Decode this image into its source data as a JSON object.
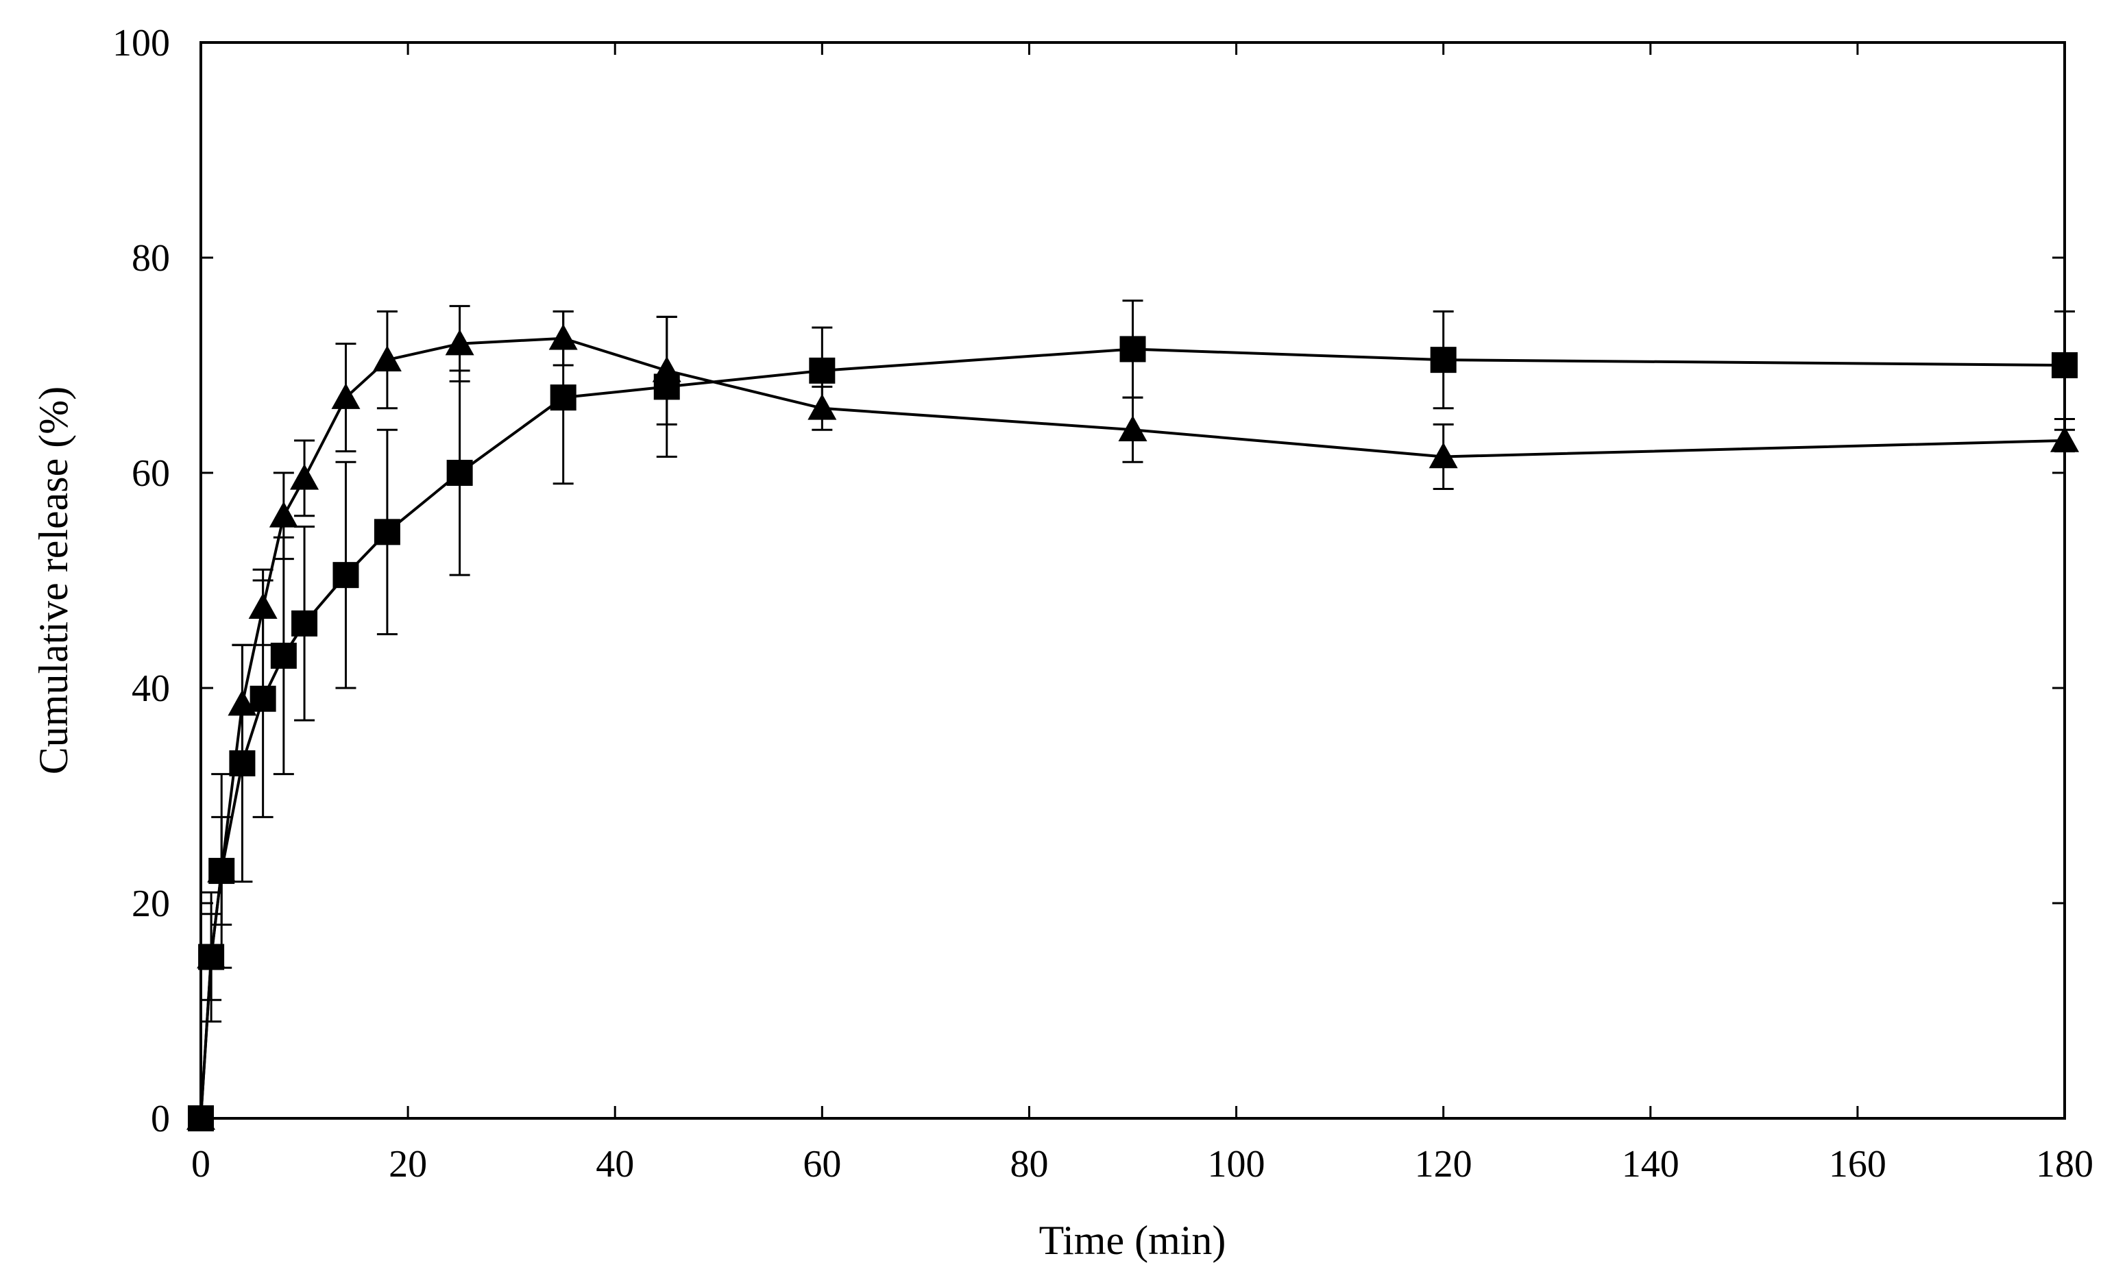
{
  "chart_data": {
    "type": "line",
    "title": "",
    "xlabel": "Time (min)",
    "ylabel": "Cumulative release (%)",
    "xlim": [
      0,
      180
    ],
    "ylim": [
      0,
      100
    ],
    "xticks": [
      0,
      20,
      40,
      60,
      80,
      100,
      120,
      140,
      160,
      180
    ],
    "yticks": [
      0,
      20,
      40,
      60,
      80,
      100
    ],
    "grid": false,
    "series": [
      {
        "name": "square",
        "marker": "square",
        "color": "#000000",
        "x": [
          0,
          1,
          2,
          4,
          6,
          8,
          10,
          14,
          18,
          25,
          35,
          45,
          60,
          90,
          120,
          180
        ],
        "y": [
          0,
          15,
          23,
          33,
          39,
          43,
          46,
          50.5,
          54.5,
          60,
          67,
          68,
          69.5,
          71.5,
          70.5,
          70
        ],
        "err": [
          0,
          6,
          9,
          11,
          11,
          11,
          9,
          10.5,
          9.5,
          9.5,
          8,
          6.5,
          4,
          4.5,
          4.5,
          5
        ]
      },
      {
        "name": "triangle",
        "marker": "triangle",
        "color": "#000000",
        "x": [
          0,
          1,
          2,
          4,
          6,
          8,
          10,
          14,
          18,
          25,
          35,
          45,
          60,
          90,
          120,
          180
        ],
        "y": [
          0,
          15,
          23,
          38.5,
          47.5,
          56,
          59.5,
          67,
          70.5,
          72,
          72.5,
          69.5,
          66,
          64,
          61.5,
          63
        ],
        "err": [
          0,
          4,
          5,
          5.5,
          3.5,
          4,
          3.5,
          5,
          4.5,
          3.5,
          2.5,
          5,
          2,
          3,
          3,
          1
        ]
      }
    ]
  }
}
